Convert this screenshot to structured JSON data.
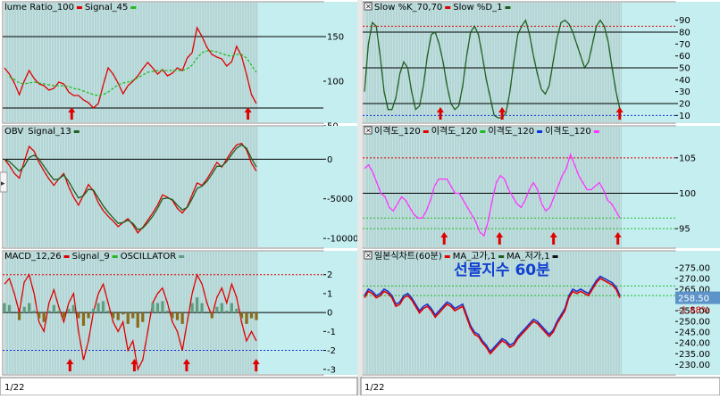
{
  "colors": {
    "plot_bg": "#ffffff",
    "stripe_bg": "#bfe3e3",
    "axis_bg": "#c4eef0",
    "grid": "#aaaaaa",
    "ref_line": "#000000",
    "red": "#e00000",
    "green_dash": "#22bb22",
    "obv": "#8b1a1a",
    "dark_green": "#1f5e1f",
    "magenta": "#ff33ff",
    "blue": "#1e33c8",
    "blue_dash": "#1133dd",
    "osc_green": "#5f9e7f",
    "osc_brown": "#8b6c1c",
    "overlay_text": "#1040d0",
    "price_tag_bg": "#5c93c8",
    "change_red": "#d00000"
  },
  "footer": {
    "left_date": "1/22",
    "right_date": "1/22"
  },
  "overlay": {
    "title": "선물지수 60분"
  },
  "chart_data": [
    {
      "id": "volume_ratio",
      "type": "line",
      "legend": [
        {
          "name": "lume Ratio_100",
          "color": "#e00000",
          "marker": "dash"
        },
        {
          "name": "Signal_45",
          "color": "#22bb22",
          "marker": "dash"
        }
      ],
      "ylim": [
        55,
        175
      ],
      "yticks": [
        "150",
        "100",
        "50"
      ],
      "reference_lines": [
        150,
        70
      ],
      "series": [
        {
          "name": "lume Ratio_100",
          "color": "#e00000",
          "values": [
            115,
            108,
            98,
            85,
            100,
            112,
            103,
            97,
            95,
            90,
            92,
            99,
            97,
            88,
            84,
            84,
            79,
            76,
            70,
            75,
            96,
            115,
            108,
            98,
            86,
            95,
            100,
            106,
            114,
            121,
            115,
            108,
            113,
            106,
            109,
            115,
            112,
            126,
            132,
            160,
            150,
            138,
            130,
            127,
            125,
            117,
            122,
            139,
            128,
            108,
            85,
            75
          ]
        },
        {
          "name": "Signal_45",
          "color": "#22bb22",
          "dashed": true,
          "values": [
            null,
            105,
            102,
            98,
            97,
            98,
            99,
            98,
            97,
            96,
            95,
            95,
            95,
            94,
            92,
            91,
            89,
            87,
            85,
            84,
            85,
            88,
            92,
            96,
            98,
            99,
            101,
            104,
            107,
            110,
            111,
            112,
            112,
            112,
            112,
            112,
            112,
            114,
            118,
            126,
            132,
            134,
            134,
            133,
            131,
            129,
            128,
            130,
            130,
            126,
            118,
            110
          ]
        }
      ],
      "arrows": [
        0.265,
        0.96
      ]
    },
    {
      "id": "obv",
      "type": "line",
      "legend": [
        {
          "name": "OBV",
          "color": "#e00000",
          "marker": "none"
        },
        {
          "name": "Signal_13",
          "color": "#1f5e1f",
          "marker": "dash"
        }
      ],
      "ylim": [
        -11000,
        2400
      ],
      "yticks": [
        "0",
        "-5000",
        "-10000"
      ],
      "reference_lines": [
        0
      ],
      "series": [
        {
          "name": "OBV",
          "color": "#e00000",
          "values": [
            0,
            -800,
            -1800,
            -2400,
            -300,
            1600,
            1000,
            -400,
            -1500,
            -2500,
            -3300,
            -2500,
            -1800,
            -3500,
            -4800,
            -5800,
            -4500,
            -3200,
            -4000,
            -5500,
            -6500,
            -7200,
            -7800,
            -8500,
            -8000,
            -7500,
            -8300,
            -9300,
            -8600,
            -7700,
            -6800,
            -5800,
            -4500,
            -4800,
            -5200,
            -6200,
            -6800,
            -6000,
            -4500,
            -3000,
            -3300,
            -2500,
            -1500,
            -400,
            -1000,
            0,
            1000,
            1800,
            2000,
            1200,
            -500,
            -1500
          ]
        },
        {
          "name": "Signal_13",
          "color": "#1f5e1f",
          "values": [
            0,
            -300,
            -900,
            -1500,
            -900,
            200,
            500,
            0,
            -900,
            -1800,
            -2600,
            -2500,
            -2000,
            -2800,
            -3900,
            -4900,
            -4600,
            -3800,
            -3900,
            -4900,
            -5900,
            -6700,
            -7400,
            -8100,
            -8000,
            -7700,
            -8100,
            -8900,
            -8700,
            -8000,
            -7200,
            -6200,
            -5000,
            -4900,
            -5100,
            -5800,
            -6400,
            -6100,
            -5000,
            -3700,
            -3400,
            -2800,
            -1900,
            -900,
            -900,
            -300,
            600,
            1400,
            1800,
            1400,
            100,
            -1000
          ]
        }
      ],
      "arrows": []
    },
    {
      "id": "macd",
      "type": "line",
      "legend": [
        {
          "name": "MACD_12,26",
          "color": "#e00000",
          "marker": "dash"
        },
        {
          "name": "Signal_9",
          "color": "#22bb22",
          "marker": "dash"
        },
        {
          "name": "OSCILLATOR",
          "color": "#5f9e7f",
          "marker": "dash"
        }
      ],
      "ylim": [
        -3.2,
        2.6
      ],
      "yticks": [
        "2",
        "1",
        "0",
        "-1",
        "-2",
        "-3"
      ],
      "reference_lines": [
        0
      ],
      "dashed_lines": [
        {
          "value": 2,
          "color": "#e00000"
        },
        {
          "value": -2,
          "color": "#1133dd"
        }
      ],
      "series": [
        {
          "name": "MACD_12,26",
          "color": "#e00000",
          "values": [
            1.5,
            1.8,
            1.0,
            0.0,
            1.6,
            2.0,
            1.0,
            -0.5,
            -1.0,
            0.5,
            1.2,
            0.3,
            -0.5,
            0.5,
            1.0,
            -1.0,
            -2.5,
            -1.5,
            0.0,
            1.0,
            1.5,
            0.5,
            -0.5,
            -1.0,
            -0.5,
            -2.0,
            -1.5,
            -3.0,
            -2.5,
            -1.0,
            0.5,
            1.0,
            1.3,
            0.5,
            -0.5,
            -1.0,
            -2.0,
            -0.5,
            1.0,
            2.0,
            1.5,
            0.5,
            -0.2,
            0.8,
            1.3,
            0.5,
            1.5,
            0.8,
            -0.5,
            -1.5,
            -1.0,
            -1.5
          ]
        },
        {
          "name": "OSCILLATOR",
          "color": "#5f9e7f",
          "type": "bar",
          "values": [
            0.5,
            0.4,
            0.0,
            -0.4,
            0.3,
            0.5,
            0.1,
            -0.3,
            -0.5,
            0.1,
            0.4,
            0.1,
            -0.3,
            0.2,
            0.4,
            -0.3,
            -0.7,
            -0.3,
            0.2,
            0.5,
            0.6,
            0.1,
            -0.3,
            -0.4,
            -0.1,
            -0.6,
            -0.3,
            -0.8,
            -0.5,
            0.0,
            0.5,
            0.5,
            0.6,
            0.1,
            -0.3,
            -0.4,
            -0.6,
            0.0,
            0.5,
            0.8,
            0.5,
            0.0,
            -0.3,
            0.3,
            0.5,
            0.1,
            0.5,
            0.2,
            -0.3,
            -0.6,
            -0.3,
            -0.4
          ]
        }
      ],
      "arrows": [
        0.258,
        0.512,
        0.718,
        0.992
      ]
    },
    {
      "id": "slow_stochastic",
      "type": "line",
      "legend": [
        {
          "name": "Slow %K_70,70",
          "color": "#e00000",
          "marker": "dash"
        },
        {
          "name": "Slow %D_1",
          "color": "#1f5e1f",
          "marker": "dash"
        }
      ],
      "ylim": [
        5,
        95
      ],
      "yticks": [
        "90",
        "80",
        "70",
        "60",
        "50",
        "40",
        "30",
        "20",
        "10"
      ],
      "reference_lines": [
        80,
        50,
        20
      ],
      "dashed_lines": [
        {
          "value": 85,
          "color": "#e00000"
        },
        {
          "value": 10,
          "color": "#1133dd"
        }
      ],
      "series": [
        {
          "name": "Slow %D_1",
          "color": "#1f5e1f",
          "values": [
            30,
            70,
            88,
            85,
            60,
            30,
            15,
            15,
            25,
            45,
            55,
            50,
            30,
            15,
            18,
            35,
            60,
            78,
            80,
            70,
            55,
            35,
            20,
            15,
            18,
            35,
            60,
            80,
            85,
            78,
            60,
            40,
            25,
            10,
            8,
            8,
            12,
            30,
            55,
            78,
            85,
            90,
            78,
            60,
            45,
            32,
            28,
            35,
            55,
            75,
            88,
            90,
            87,
            80,
            70,
            60,
            50,
            55,
            70,
            85,
            90,
            85,
            72,
            50,
            30,
            15
          ]
        }
      ],
      "arrows": [
        0.295,
        0.535,
        0.992
      ]
    },
    {
      "id": "disparity",
      "type": "line",
      "legend": [
        {
          "name": "이격도_120",
          "color": "#e00000",
          "marker": "dash"
        },
        {
          "name": "이격도_120",
          "color": "#22bb22",
          "marker": "dash"
        },
        {
          "name": "이격도_120",
          "color": "#1133dd",
          "marker": "dash"
        },
        {
          "name": "이격도_120",
          "color": "#ff33ff",
          "marker": "dash"
        }
      ],
      "ylim": [
        92.5,
        107.5
      ],
      "yticks": [
        "105",
        "100",
        "95"
      ],
      "reference_lines": [
        100
      ],
      "dashed_lines": [
        {
          "value": 105,
          "color": "#e00000"
        },
        {
          "value": 96.5,
          "color": "#22bb22"
        },
        {
          "value": 95,
          "color": "#22bb22"
        }
      ],
      "series": [
        {
          "name": "이격도_120",
          "color": "#ff33ff",
          "values": [
            103.5,
            104,
            103,
            101.5,
            100,
            99.5,
            98,
            97.5,
            98.5,
            99.5,
            99,
            98,
            97,
            96.5,
            96.5,
            97.5,
            99,
            101,
            102,
            102,
            102,
            101,
            100,
            100,
            99,
            98,
            97,
            96,
            94.5,
            94,
            96,
            99,
            101.5,
            102.5,
            102,
            100.5,
            99.5,
            98.5,
            98,
            99,
            100.5,
            101.5,
            100.5,
            98.5,
            97.5,
            98,
            99.5,
            101,
            102.5,
            103.5,
            105.5,
            104,
            102.5,
            101.5,
            100.5,
            100.5,
            101,
            101.5,
            100.5,
            99,
            98.5,
            97.5,
            96.5
          ]
        }
      ],
      "arrows": [
        0.31,
        0.525,
        0.735,
        0.985
      ]
    },
    {
      "id": "price",
      "type": "line",
      "legend": [
        {
          "name": "일본식차트(60분)",
          "color": "#e00000",
          "marker": "dash"
        },
        {
          "name": "MA_고가,1",
          "color": "#1f5e1f",
          "marker": "dash"
        },
        {
          "name": "MA_저가,1",
          "color": "#111111",
          "marker": "dash"
        }
      ],
      "ylim": [
        226,
        277
      ],
      "yticks": [
        "275.00",
        "270.00",
        "265.00",
        "260.00",
        "255.00",
        "250.00",
        "245.00",
        "240.00",
        "235.00",
        "230.00"
      ],
      "current_value": "258.50",
      "change": "-1.88%",
      "dashed_lines": [
        {
          "value": 266.5,
          "color": "#22bb22"
        },
        {
          "value": 262.0,
          "color": "#22bb22"
        }
      ],
      "series": [
        {
          "name": "MA_고가,1",
          "color": "#1e33c8",
          "values": [
            262,
            265,
            264,
            262,
            263,
            265,
            264,
            262,
            258,
            259,
            262,
            263,
            261,
            258,
            255,
            257,
            258,
            256,
            253,
            255,
            257,
            259,
            258,
            256,
            257,
            258,
            253,
            248,
            245,
            244,
            241,
            239,
            236,
            238,
            240,
            242,
            241,
            239,
            240,
            243,
            245,
            247,
            249,
            251,
            250,
            248,
            246,
            244,
            246,
            250,
            253,
            256,
            262,
            265,
            264,
            265,
            264,
            263,
            266,
            269,
            271,
            270,
            269,
            268,
            266,
            262
          ]
        },
        {
          "name": "일본식차트(60분)",
          "color": "#e00000",
          "values": [
            261,
            264,
            263,
            261,
            262,
            264,
            263,
            261,
            257,
            258,
            261,
            262,
            260,
            257,
            254,
            256,
            257,
            255,
            252,
            254,
            256,
            258,
            257,
            255,
            256,
            257,
            252,
            247,
            244,
            243,
            240,
            238,
            235,
            237,
            239,
            241,
            240,
            238,
            239,
            242,
            244,
            246,
            248,
            250,
            249,
            247,
            245,
            243,
            245,
            249,
            252,
            255,
            261,
            264,
            263,
            264,
            263,
            262,
            265,
            268,
            270,
            269,
            268,
            267,
            265,
            261
          ]
        }
      ],
      "arrows": []
    }
  ]
}
